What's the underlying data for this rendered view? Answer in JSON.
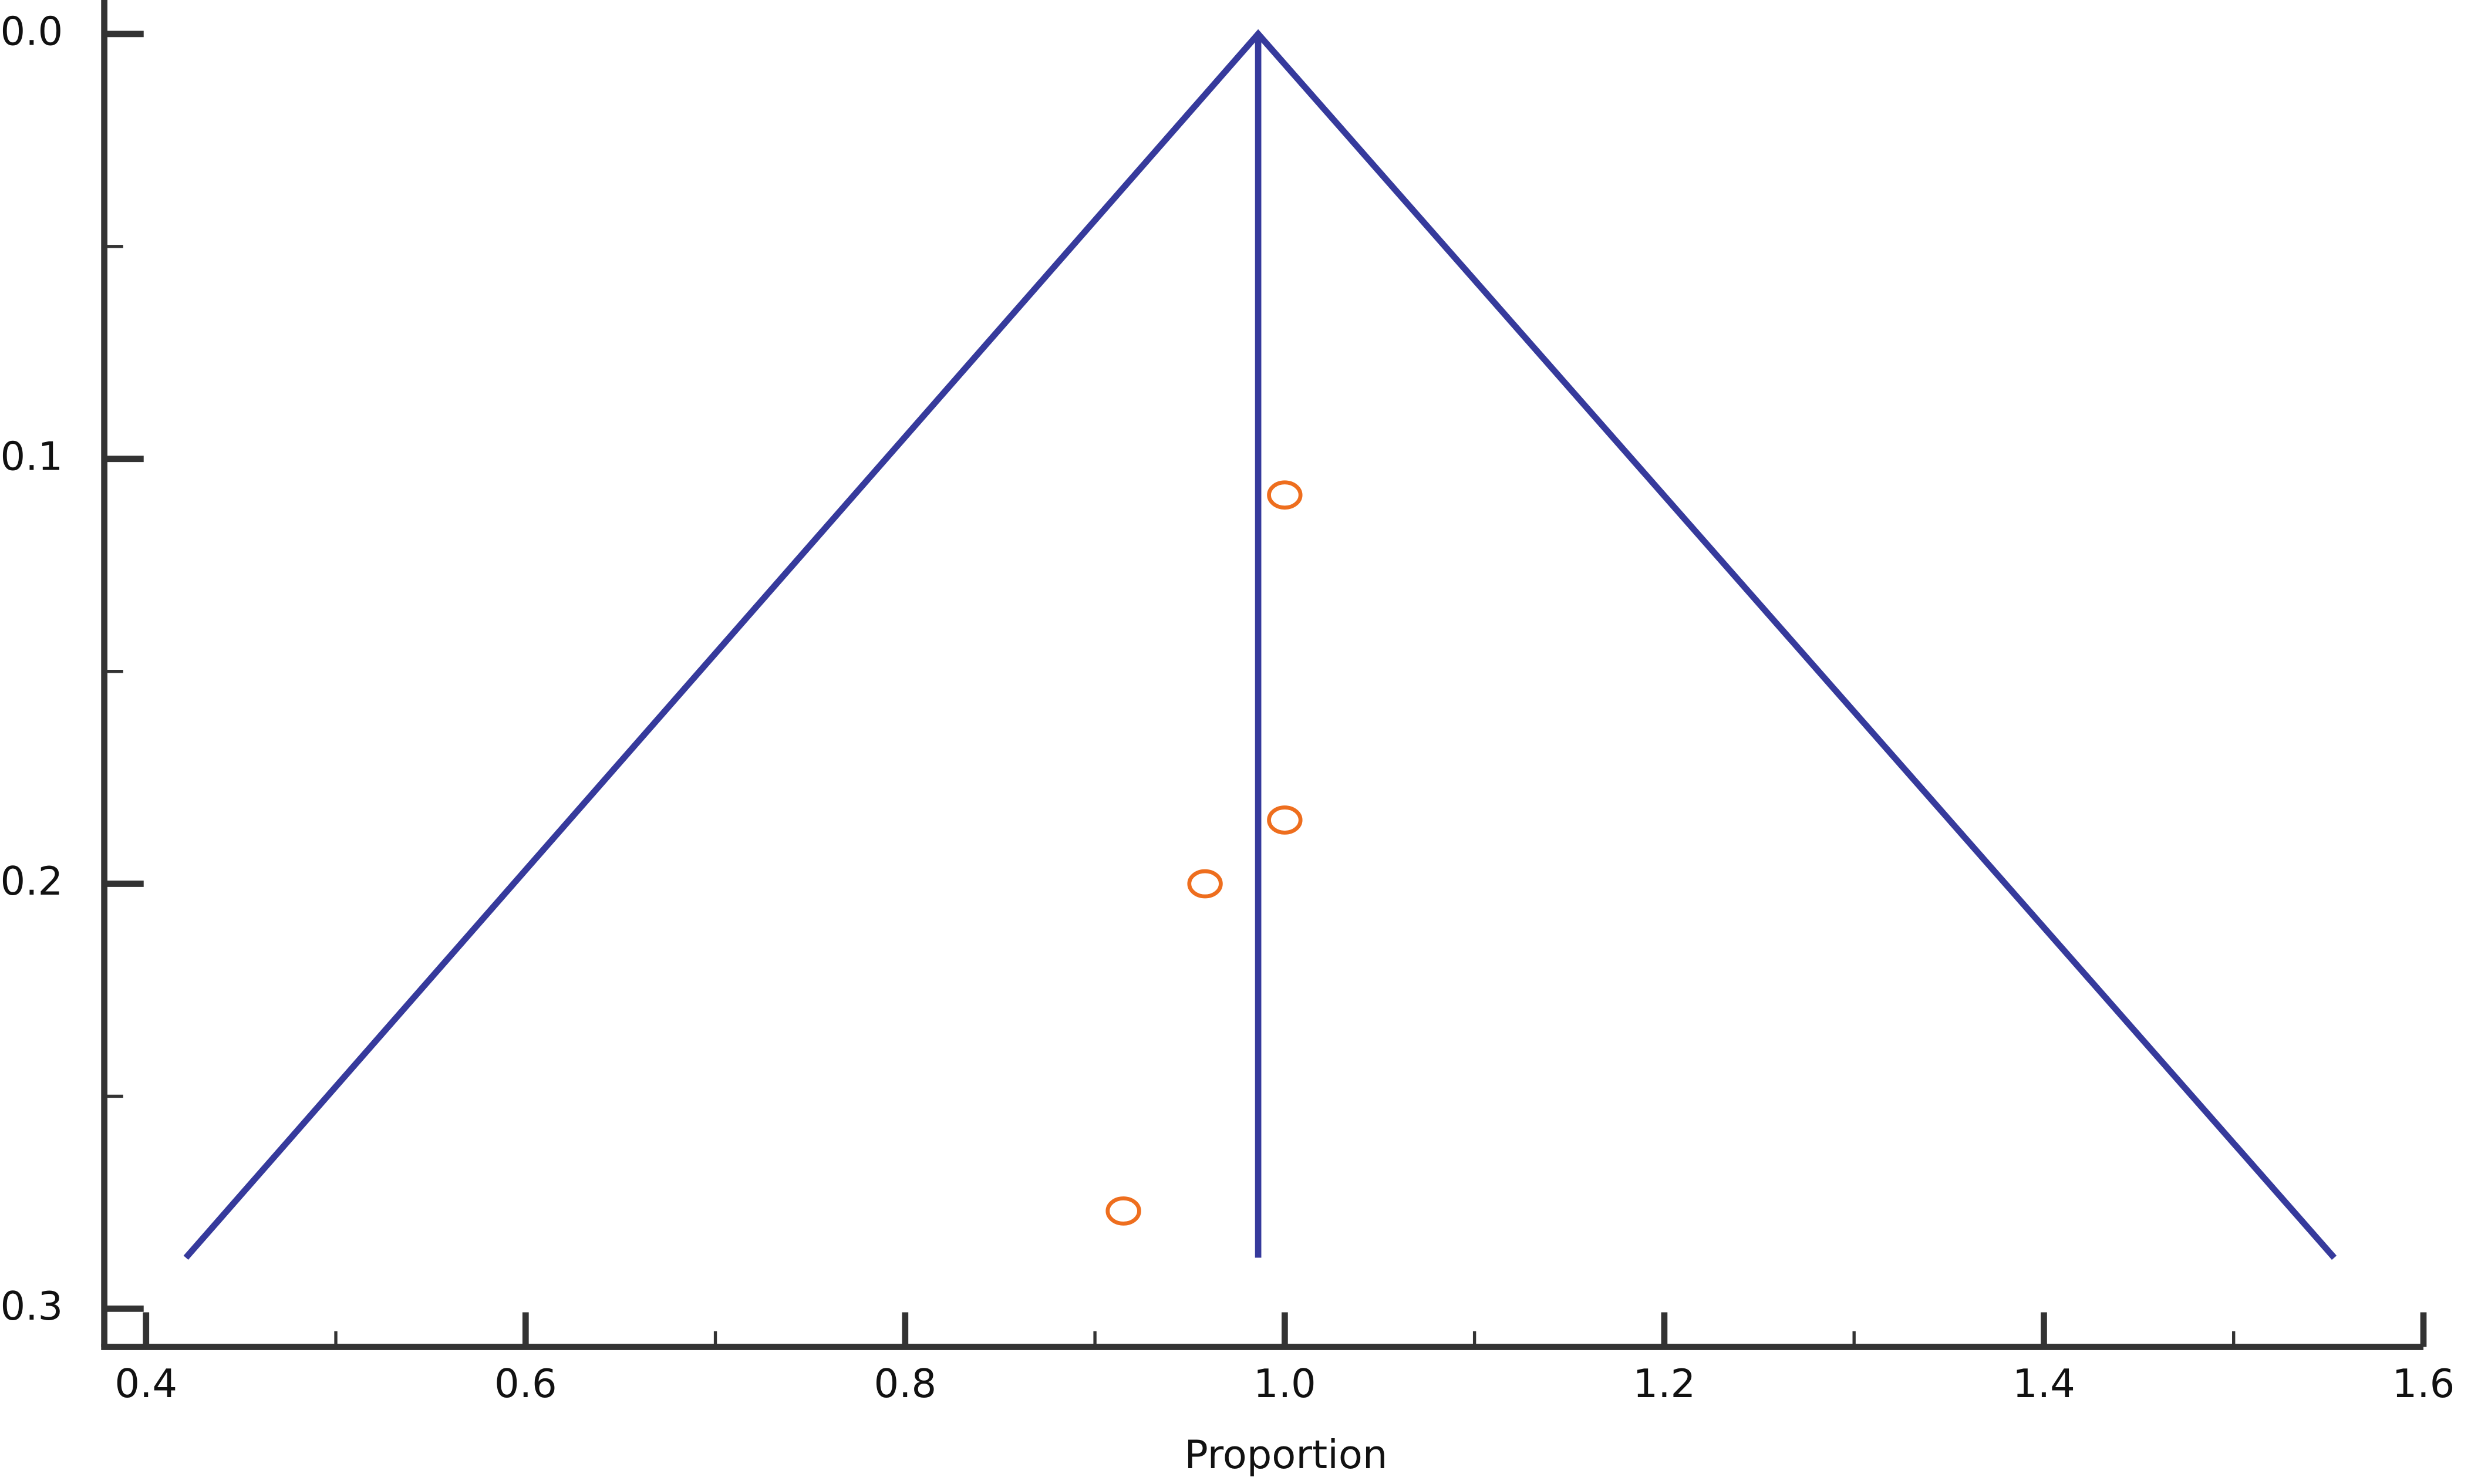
{
  "chart_data": {
    "type": "scatter",
    "x_label": "Proportion",
    "xlim": [
      0.378,
      1.6
    ],
    "ylim": [
      -0.008,
      0.309
    ],
    "y_inverted": true,
    "xticks": [
      0.4,
      0.6,
      0.8,
      {
        "value": 1,
        "label": "1.0"
      },
      1.2,
      1.4,
      1.6
    ],
    "yticks": [
      {
        "value": 0,
        "label": "0.0"
      },
      0.1,
      0.2,
      0.3
    ],
    "xminor": [
      0.5,
      0.7,
      0.9,
      1.1,
      1.3,
      1.5
    ],
    "yminor": [
      0.05,
      0.15,
      0.25
    ],
    "points": {
      "color": "#ee6e1e",
      "x": [
        1.0,
        1.0,
        0.958,
        0.915
      ],
      "y": [
        0.1085,
        0.185,
        0.2,
        0.277
      ]
    },
    "lines": [
      {
        "color": "#363a9c",
        "x": [
          0.421,
          0.986,
          1.553
        ],
        "y": [
          0.288,
          0,
          0.288
        ]
      },
      {
        "color": "#363a9c",
        "x": [
          0.986,
          0.986
        ],
        "y": [
          0,
          0.288
        ]
      }
    ]
  }
}
